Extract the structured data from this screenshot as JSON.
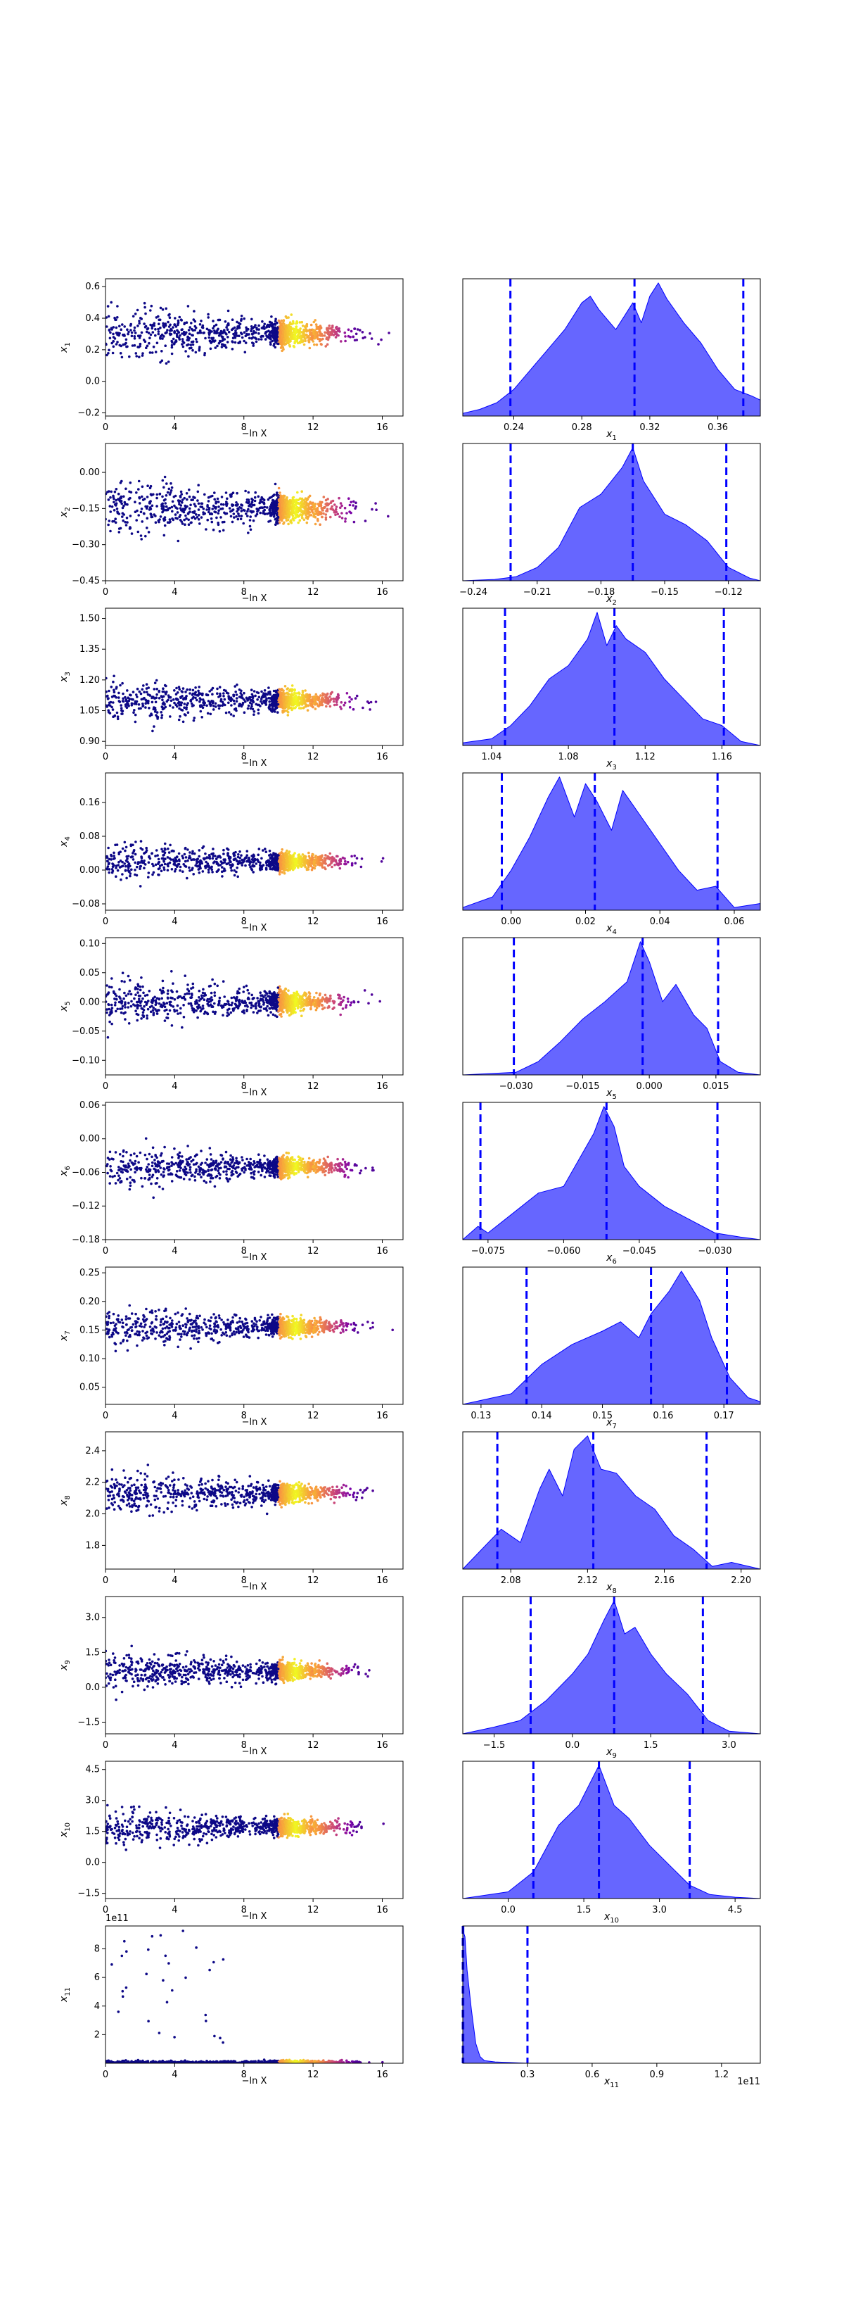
{
  "colors": {
    "scatter_low": "#0d0887",
    "scatter_mid": "#9c179e",
    "scatter_high": "#f0f921",
    "kde_fill": "#0000ff",
    "kde_fill_opacity": 0.6,
    "quantile_line": "#0000ff"
  },
  "common": {
    "scatter_xlabel": "−ln X",
    "scatter_xlim": [
      0,
      17.2
    ],
    "scatter_xticks": [
      "0",
      "4",
      "8",
      "12",
      "16"
    ],
    "scatter_xtick_values": [
      0,
      4,
      8,
      12,
      16
    ],
    "scatter_layout": "points colored by −ln X, dense band near x≈11"
  },
  "chart_data": [
    {
      "type": "scatter",
      "row": 1,
      "ylabel": "x₁",
      "ylabel_main": "x",
      "ylabel_sub": "1",
      "ylim": [
        -0.22,
        0.65
      ],
      "yticks": [
        "−0.2",
        "0.0",
        "0.2",
        "0.4",
        "0.6"
      ],
      "ytick_values": [
        -0.2,
        0.0,
        0.2,
        0.4,
        0.6
      ],
      "center": 0.3,
      "spread": 0.2
    },
    {
      "type": "area",
      "row": 1,
      "xlabel": "x₁",
      "xlabel_main": "x",
      "xlabel_sub": "1",
      "xlim": [
        0.21,
        0.385
      ],
      "xticks": [
        "0.24",
        "0.28",
        "0.32",
        "0.36"
      ],
      "xtick_values": [
        0.24,
        0.28,
        0.32,
        0.36
      ],
      "quantiles": [
        0.238,
        0.311,
        0.375
      ],
      "kde_x": [
        0.21,
        0.22,
        0.23,
        0.24,
        0.25,
        0.26,
        0.27,
        0.28,
        0.285,
        0.29,
        0.3,
        0.31,
        0.315,
        0.32,
        0.325,
        0.33,
        0.34,
        0.35,
        0.36,
        0.37,
        0.38,
        0.385
      ],
      "kde_y": [
        0.02,
        0.05,
        0.1,
        0.2,
        0.35,
        0.5,
        0.65,
        0.85,
        0.9,
        0.8,
        0.65,
        0.85,
        0.7,
        0.9,
        1.0,
        0.88,
        0.7,
        0.55,
        0.35,
        0.2,
        0.15,
        0.12
      ]
    },
    {
      "type": "scatter",
      "row": 2,
      "ylabel": "x₂",
      "ylabel_main": "x",
      "ylabel_sub": "2",
      "ylim": [
        -0.45,
        0.12
      ],
      "yticks": [
        "−0.45",
        "−0.30",
        "−0.15",
        "0.00"
      ],
      "ytick_values": [
        -0.45,
        -0.3,
        -0.15,
        0.0
      ],
      "center": -0.15,
      "spread": 0.14
    },
    {
      "type": "area",
      "row": 2,
      "xlabel": "x₂",
      "xlabel_main": "x",
      "xlabel_sub": "2",
      "xlim": [
        -0.245,
        -0.105
      ],
      "xticks": [
        "−0.24",
        "−0.21",
        "−0.18",
        "−0.15",
        "−0.12"
      ],
      "xtick_values": [
        -0.24,
        -0.21,
        -0.18,
        -0.15,
        -0.12
      ],
      "quantiles": [
        -0.2225,
        -0.165,
        -0.121
      ],
      "kde_x": [
        -0.245,
        -0.23,
        -0.22,
        -0.21,
        -0.2,
        -0.19,
        -0.18,
        -0.17,
        -0.165,
        -0.16,
        -0.15,
        -0.14,
        -0.13,
        -0.12,
        -0.11,
        -0.105
      ],
      "kde_y": [
        0.0,
        0.01,
        0.03,
        0.1,
        0.25,
        0.55,
        0.65,
        0.85,
        1.0,
        0.75,
        0.5,
        0.42,
        0.3,
        0.1,
        0.02,
        0.0
      ]
    },
    {
      "type": "scatter",
      "row": 3,
      "ylabel": "x₃",
      "ylabel_main": "x",
      "ylabel_sub": "3",
      "ylim": [
        0.88,
        1.55
      ],
      "yticks": [
        "0.90",
        "1.05",
        "1.20",
        "1.35",
        "1.50"
      ],
      "ytick_values": [
        0.9,
        1.05,
        1.2,
        1.35,
        1.5
      ],
      "center": 1.1,
      "spread": 0.12
    },
    {
      "type": "area",
      "row": 3,
      "xlabel": "x₃",
      "xlabel_main": "x",
      "xlabel_sub": "3",
      "xlim": [
        1.025,
        1.18
      ],
      "xticks": [
        "1.04",
        "1.08",
        "1.12",
        "1.16"
      ],
      "xtick_values": [
        1.04,
        1.08,
        1.12,
        1.16
      ],
      "quantiles": [
        1.047,
        1.104,
        1.161
      ],
      "kde_x": [
        1.025,
        1.04,
        1.05,
        1.06,
        1.07,
        1.08,
        1.09,
        1.095,
        1.1,
        1.105,
        1.11,
        1.12,
        1.13,
        1.14,
        1.15,
        1.16,
        1.17,
        1.18
      ],
      "kde_y": [
        0.02,
        0.05,
        0.15,
        0.3,
        0.5,
        0.6,
        0.8,
        1.0,
        0.75,
        0.9,
        0.8,
        0.7,
        0.5,
        0.35,
        0.2,
        0.15,
        0.03,
        0.0
      ]
    },
    {
      "type": "scatter",
      "row": 4,
      "ylabel": "x₄",
      "ylabel_main": "x",
      "ylabel_sub": "4",
      "ylim": [
        -0.095,
        0.23
      ],
      "yticks": [
        "−0.08",
        "0.00",
        "0.08",
        "0.16"
      ],
      "ytick_values": [
        -0.08,
        0.0,
        0.08,
        0.16
      ],
      "center": 0.02,
      "spread": 0.05
    },
    {
      "type": "area",
      "row": 4,
      "xlabel": "x₄",
      "xlabel_main": "x",
      "xlabel_sub": "4",
      "xlim": [
        -0.013,
        0.067
      ],
      "xticks": [
        "0.00",
        "0.02",
        "0.04",
        "0.06"
      ],
      "xtick_values": [
        0.0,
        0.02,
        0.04,
        0.06
      ],
      "quantiles": [
        -0.0025,
        0.0225,
        0.0555
      ],
      "kde_x": [
        -0.013,
        -0.005,
        0.0,
        0.005,
        0.01,
        0.013,
        0.017,
        0.02,
        0.023,
        0.027,
        0.03,
        0.035,
        0.04,
        0.045,
        0.05,
        0.055,
        0.06,
        0.067
      ],
      "kde_y": [
        0.02,
        0.1,
        0.3,
        0.55,
        0.85,
        1.0,
        0.7,
        0.95,
        0.82,
        0.6,
        0.9,
        0.7,
        0.5,
        0.3,
        0.15,
        0.18,
        0.02,
        0.05
      ]
    },
    {
      "type": "scatter",
      "row": 5,
      "ylabel": "x₅",
      "ylabel_main": "x",
      "ylabel_sub": "5",
      "ylim": [
        -0.125,
        0.11
      ],
      "yticks": [
        "−0.10",
        "−0.05",
        "0.00",
        "0.05",
        "0.10"
      ],
      "ytick_values": [
        -0.1,
        -0.05,
        0.0,
        0.05,
        0.1
      ],
      "center": 0.0,
      "spread": 0.045
    },
    {
      "type": "area",
      "row": 5,
      "xlabel": "x₅",
      "xlabel_main": "x",
      "xlabel_sub": "5",
      "xlim": [
        -0.042,
        0.025
      ],
      "xticks": [
        "−0.030",
        "−0.015",
        "0.000",
        "0.015"
      ],
      "xtick_values": [
        -0.03,
        -0.015,
        0.0,
        0.015
      ],
      "quantiles": [
        -0.0305,
        -0.0015,
        0.0155
      ],
      "kde_x": [
        -0.042,
        -0.03,
        -0.025,
        -0.02,
        -0.015,
        -0.01,
        -0.005,
        -0.002,
        0.0,
        0.003,
        0.006,
        0.01,
        0.013,
        0.016,
        0.02,
        0.025
      ],
      "kde_y": [
        0.0,
        0.02,
        0.1,
        0.25,
        0.42,
        0.55,
        0.7,
        1.0,
        0.85,
        0.55,
        0.68,
        0.45,
        0.35,
        0.1,
        0.02,
        0.0
      ]
    },
    {
      "type": "scatter",
      "row": 6,
      "ylabel": "x₆",
      "ylabel_main": "x",
      "ylabel_sub": "6",
      "ylim": [
        -0.18,
        0.065
      ],
      "yticks": [
        "−0.18",
        "−0.12",
        "−0.06",
        "0.00",
        "0.06"
      ],
      "ytick_values": [
        -0.18,
        -0.12,
        -0.06,
        0.0,
        0.06
      ],
      "center": -0.05,
      "spread": 0.04
    },
    {
      "type": "area",
      "row": 6,
      "xlabel": "x₆",
      "xlabel_main": "x",
      "xlabel_sub": "6",
      "xlim": [
        -0.08,
        -0.021
      ],
      "xticks": [
        "−0.075",
        "−0.060",
        "−0.045",
        "−0.030"
      ],
      "xtick_values": [
        -0.075,
        -0.06,
        -0.045,
        -0.03
      ],
      "quantiles": [
        -0.0765,
        -0.0515,
        -0.0295
      ],
      "kde_x": [
        -0.08,
        -0.077,
        -0.075,
        -0.07,
        -0.065,
        -0.06,
        -0.057,
        -0.054,
        -0.052,
        -0.05,
        -0.048,
        -0.045,
        -0.04,
        -0.035,
        -0.03,
        -0.025,
        -0.021
      ],
      "kde_y": [
        0.0,
        0.1,
        0.05,
        0.2,
        0.35,
        0.4,
        0.6,
        0.8,
        1.0,
        0.85,
        0.55,
        0.4,
        0.25,
        0.15,
        0.05,
        0.02,
        0.0
      ]
    },
    {
      "type": "scatter",
      "row": 7,
      "ylabel": "x₇",
      "ylabel_main": "x",
      "ylabel_sub": "7",
      "ylim": [
        0.02,
        0.26
      ],
      "yticks": [
        "0.05",
        "0.10",
        "0.15",
        "0.20",
        "0.25"
      ],
      "ytick_values": [
        0.05,
        0.1,
        0.15,
        0.2,
        0.25
      ],
      "center": 0.155,
      "spread": 0.04
    },
    {
      "type": "area",
      "row": 7,
      "xlabel": "x₇",
      "xlabel_main": "x",
      "xlabel_sub": "7",
      "xlim": [
        0.127,
        0.176
      ],
      "xticks": [
        "0.13",
        "0.14",
        "0.15",
        "0.16",
        "0.17"
      ],
      "xtick_values": [
        0.13,
        0.14,
        0.15,
        0.16,
        0.17
      ],
      "quantiles": [
        0.1375,
        0.158,
        0.1705
      ],
      "kde_x": [
        0.127,
        0.135,
        0.14,
        0.145,
        0.15,
        0.153,
        0.156,
        0.158,
        0.161,
        0.163,
        0.166,
        0.168,
        0.171,
        0.174,
        0.176
      ],
      "kde_y": [
        0.0,
        0.08,
        0.3,
        0.45,
        0.55,
        0.62,
        0.5,
        0.68,
        0.85,
        1.0,
        0.78,
        0.5,
        0.2,
        0.05,
        0.02
      ]
    },
    {
      "type": "scatter",
      "row": 8,
      "ylabel": "x₈",
      "ylabel_main": "x",
      "ylabel_sub": "8",
      "ylim": [
        1.65,
        2.52
      ],
      "yticks": [
        "1.8",
        "2.0",
        "2.2",
        "2.4"
      ],
      "ytick_values": [
        1.8,
        2.0,
        2.2,
        2.4
      ],
      "center": 2.13,
      "spread": 0.15
    },
    {
      "type": "area",
      "row": 8,
      "xlabel": "x₈",
      "xlabel_main": "x",
      "xlabel_sub": "8",
      "xlim": [
        2.055,
        2.21
      ],
      "xticks": [
        "2.08",
        "2.12",
        "2.16",
        "2.20"
      ],
      "xtick_values": [
        2.08,
        2.12,
        2.16,
        2.2
      ],
      "quantiles": [
        2.073,
        2.123,
        2.182
      ],
      "kde_x": [
        2.055,
        2.065,
        2.075,
        2.085,
        2.095,
        2.1,
        2.107,
        2.113,
        2.12,
        2.127,
        2.135,
        2.145,
        2.155,
        2.165,
        2.175,
        2.185,
        2.195,
        2.21
      ],
      "kde_y": [
        0.0,
        0.15,
        0.3,
        0.2,
        0.6,
        0.75,
        0.55,
        0.9,
        1.0,
        0.75,
        0.72,
        0.55,
        0.45,
        0.25,
        0.15,
        0.02,
        0.05,
        0.0
      ]
    },
    {
      "type": "scatter",
      "row": 9,
      "ylabel": "x₉",
      "ylabel_main": "x",
      "ylabel_sub": "9",
      "ylim": [
        -2.0,
        3.9
      ],
      "yticks": [
        "−1.5",
        "0.0",
        "1.5",
        "3.0"
      ],
      "ytick_values": [
        -1.5,
        0.0,
        1.5,
        3.0
      ],
      "center": 0.7,
      "spread": 0.9
    },
    {
      "type": "area",
      "row": 9,
      "xlabel": "x₉",
      "xlabel_main": "x",
      "xlabel_sub": "9",
      "xlim": [
        -2.1,
        3.6
      ],
      "xticks": [
        "−1.5",
        "0.0",
        "1.5",
        "3.0"
      ],
      "xtick_values": [
        -1.5,
        0.0,
        1.5,
        3.0
      ],
      "quantiles": [
        -0.8,
        0.8,
        2.5
      ],
      "kde_x": [
        -2.1,
        -1.5,
        -1.0,
        -0.5,
        0.0,
        0.3,
        0.6,
        0.8,
        1.0,
        1.2,
        1.5,
        1.8,
        2.2,
        2.6,
        3.0,
        3.6
      ],
      "kde_y": [
        0.0,
        0.05,
        0.1,
        0.25,
        0.45,
        0.6,
        0.85,
        1.0,
        0.75,
        0.8,
        0.6,
        0.45,
        0.3,
        0.1,
        0.02,
        0.0
      ]
    },
    {
      "type": "scatter",
      "row": 10,
      "ylabel": "x₁₀",
      "ylabel_main": "x",
      "ylabel_sub": "10",
      "ylim": [
        -1.75,
        4.9
      ],
      "yticks": [
        "−1.5",
        "0.0",
        "1.5",
        "3.0",
        "4.5"
      ],
      "ytick_values": [
        -1.5,
        0.0,
        1.5,
        3.0,
        4.5
      ],
      "center": 1.7,
      "spread": 1.0
    },
    {
      "type": "area",
      "row": 10,
      "xlabel": "x₁₀",
      "xlabel_main": "x",
      "xlabel_sub": "10",
      "xlim": [
        -0.9,
        5.0
      ],
      "xticks": [
        "0.0",
        "1.5",
        "3.0",
        "4.5"
      ],
      "xtick_values": [
        0.0,
        1.5,
        3.0,
        4.5
      ],
      "quantiles": [
        0.5,
        1.8,
        3.6
      ],
      "kde_x": [
        -0.9,
        0.0,
        0.5,
        1.0,
        1.4,
        1.8,
        2.1,
        2.4,
        2.8,
        3.2,
        3.6,
        4.0,
        4.5,
        5.0
      ],
      "kde_y": [
        0.0,
        0.05,
        0.2,
        0.55,
        0.7,
        1.0,
        0.7,
        0.6,
        0.4,
        0.25,
        0.1,
        0.03,
        0.01,
        0.0
      ]
    },
    {
      "type": "scatter",
      "row": 11,
      "ylabel": "x₁₁",
      "ylabel_main": "x",
      "ylabel_sub": "11",
      "offset_text": "1e11",
      "ylim": [
        0,
        9.6
      ],
      "yticks": [
        "2",
        "4",
        "6",
        "8"
      ],
      "ytick_values": [
        2,
        4,
        6,
        8
      ],
      "center": 0.05,
      "spread": 0.1
    },
    {
      "type": "area",
      "row": 11,
      "xlabel": "x₁₁",
      "xlabel_main": "x",
      "xlabel_sub": "11",
      "offset_text": "1e11",
      "xlim": [
        0.0,
        1.38
      ],
      "xticks": [
        "0.3",
        "0.6",
        "0.9",
        "1.2"
      ],
      "xtick_values": [
        0.3,
        0.6,
        0.9,
        1.2
      ],
      "quantiles": [
        0.0,
        0.002,
        0.3
      ],
      "kde_x": [
        0.0,
        0.01,
        0.02,
        0.04,
        0.06,
        0.08,
        0.1,
        0.15,
        0.3,
        1.38
      ],
      "kde_y": [
        1.0,
        0.95,
        0.7,
        0.4,
        0.15,
        0.05,
        0.02,
        0.01,
        0.0,
        0.0
      ]
    }
  ]
}
